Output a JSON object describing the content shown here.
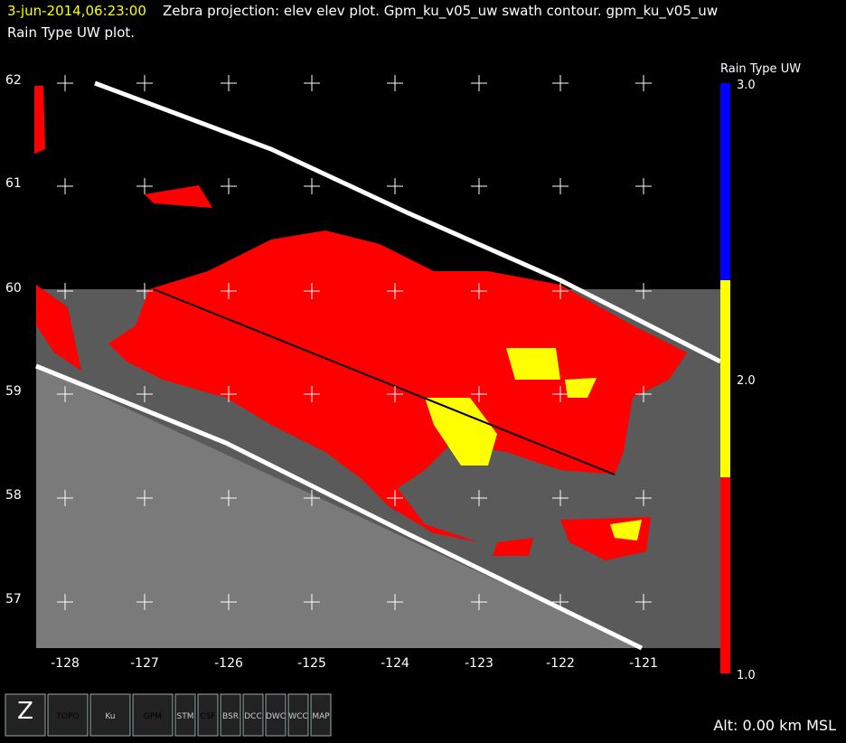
{
  "header": {
    "timestamp": "3-jun-2014,06:23:00",
    "line1": "Zebra projection: elev elev  plot.  Gpm_ku_v05_uw swath contour.  gpm_ku_v05_uw",
    "line2": "Rain Type UW  plot."
  },
  "axes": {
    "y_labels": [
      "62",
      "61",
      "60",
      "59",
      "58",
      "57"
    ],
    "x_labels": [
      "-128",
      "-127",
      "-126",
      "-125",
      "-124",
      "-123",
      "-122",
      "-121"
    ]
  },
  "colorbar": {
    "title": "Rain Type UW",
    "labels": [
      "3.0",
      "2.0",
      "1.0"
    ]
  },
  "toolbar": {
    "icons": [
      "Z",
      "TOPO",
      "Ku",
      "GPM",
      "STM",
      "CSF",
      "BSR",
      "DCC",
      "DWC",
      "WCC",
      "MAP"
    ]
  },
  "status": "Alt: 0.00 km MSL"
}
